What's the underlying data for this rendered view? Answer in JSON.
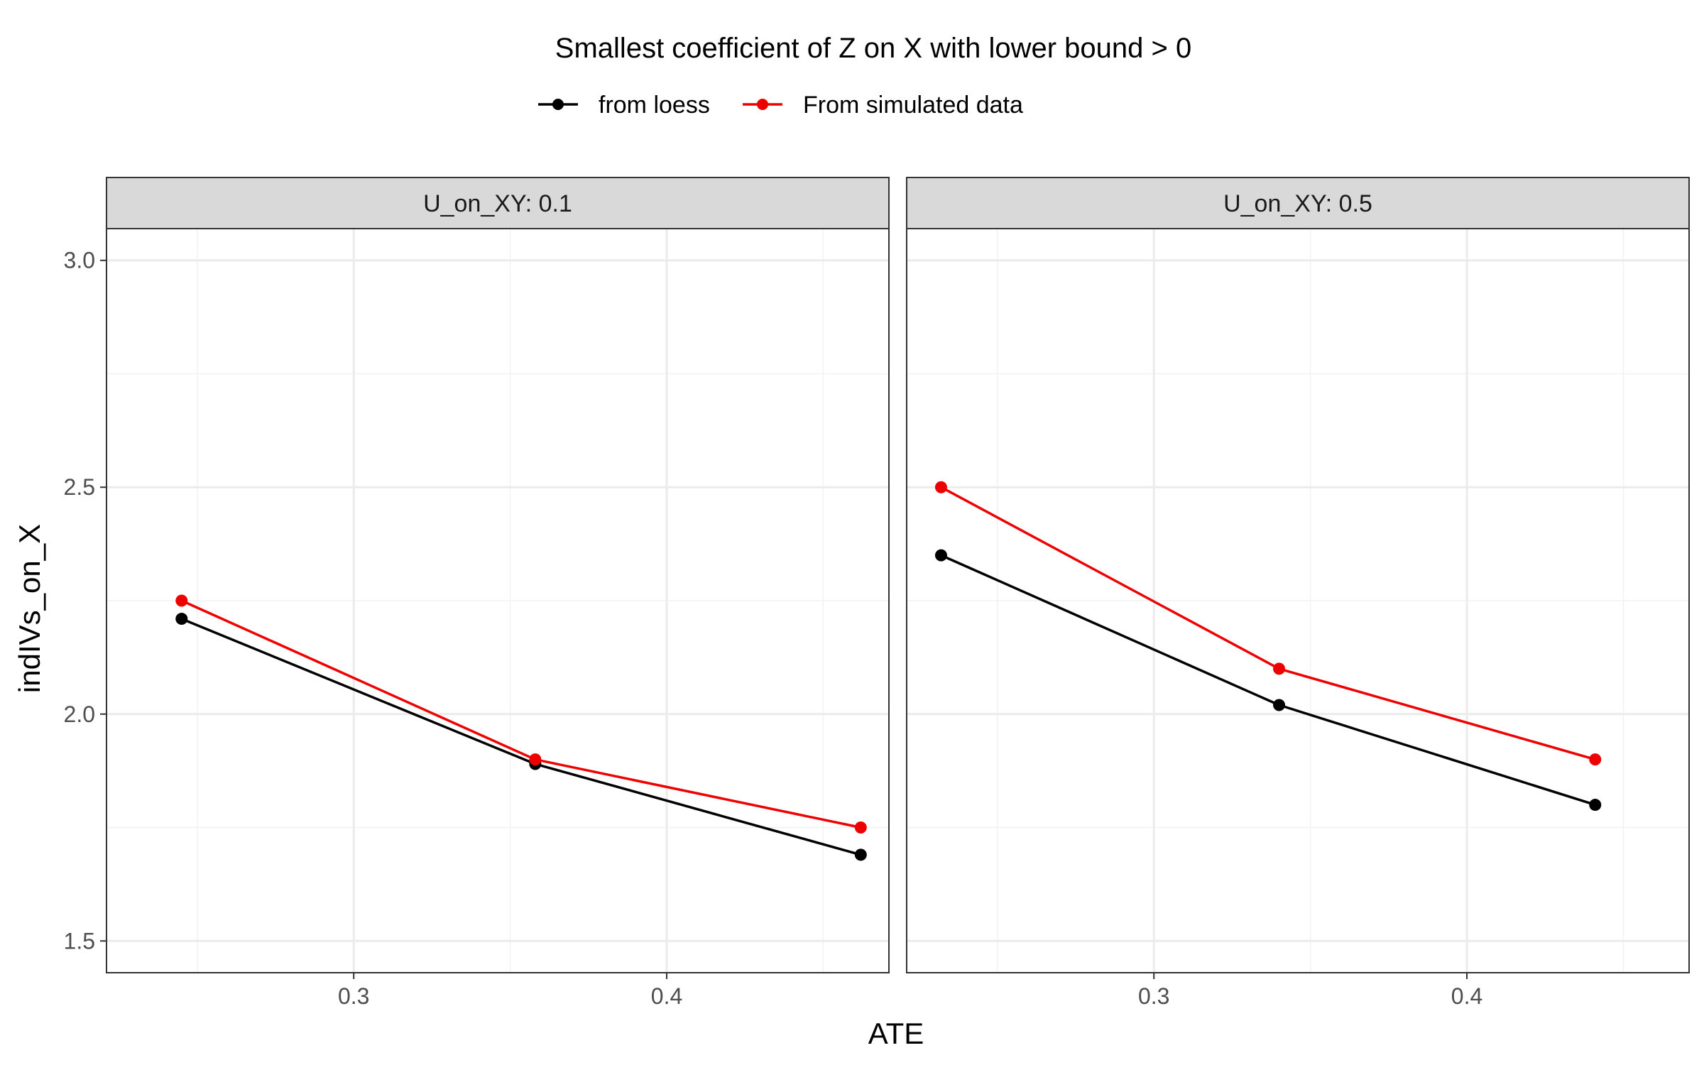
{
  "chart_data": {
    "type": "line",
    "title": "Smallest coefficient of Z on X with lower bound > 0",
    "xlabel": "ATE",
    "ylabel": "indIVs_on_X",
    "xlim": [
      0.221,
      0.471
    ],
    "ylim": [
      1.43,
      3.07
    ],
    "x_ticks": [
      0.3,
      0.4
    ],
    "x_tick_labels": [
      "0.3",
      "0.4"
    ],
    "y_ticks": [
      1.5,
      2.0,
      2.5,
      3.0
    ],
    "y_tick_labels": [
      "1.5",
      "2.0",
      "2.5",
      "3.0"
    ],
    "grid": true,
    "legend_position": "top",
    "legend": [
      {
        "label": "from loess",
        "color": "#000000"
      },
      {
        "label": "From simulated data",
        "color": "#ee0000"
      }
    ],
    "panels": [
      {
        "strip": "U_on_XY: 0.1",
        "series": [
          {
            "name": "from loess",
            "color": "#000000",
            "x": [
              0.245,
              0.358,
              0.462
            ],
            "y": [
              2.21,
              1.89,
              1.69
            ]
          },
          {
            "name": "From simulated data",
            "color": "#ee0000",
            "x": [
              0.245,
              0.358,
              0.462
            ],
            "y": [
              2.25,
              1.9,
              1.75
            ]
          }
        ]
      },
      {
        "strip": "U_on_XY: 0.5",
        "series": [
          {
            "name": "from loess",
            "color": "#000000",
            "x": [
              0.232,
              0.34,
              0.441
            ],
            "y": [
              2.35,
              2.02,
              1.8
            ]
          },
          {
            "name": "From simulated data",
            "color": "#ee0000",
            "x": [
              0.232,
              0.34,
              0.441
            ],
            "y": [
              2.5,
              2.1,
              1.9
            ]
          }
        ]
      }
    ]
  }
}
